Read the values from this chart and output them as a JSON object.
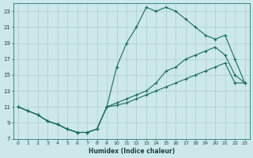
{
  "xlabel": "Humidex (Indice chaleur)",
  "ylabel": "",
  "bg_color": "#cce8ea",
  "grid_color": "#aacdd0",
  "line_color": "#1a6b60",
  "xlim": [
    -0.5,
    23.5
  ],
  "ylim": [
    7,
    24
  ],
  "xticks": [
    0,
    1,
    2,
    3,
    4,
    5,
    6,
    7,
    8,
    9,
    10,
    11,
    12,
    13,
    14,
    15,
    16,
    17,
    18,
    19,
    20,
    21,
    22,
    23
  ],
  "yticks": [
    7,
    9,
    11,
    13,
    15,
    17,
    19,
    21,
    23
  ],
  "line1_x": [
    0,
    1,
    2,
    3,
    4,
    5,
    6,
    7,
    8,
    9,
    10,
    11,
    12,
    13,
    14,
    15,
    16,
    17,
    18,
    19,
    20,
    21,
    22,
    23
  ],
  "line1_y": [
    11,
    10.5,
    10,
    9.2,
    8.8,
    8.2,
    7.8,
    7.8,
    8.2,
    11,
    16,
    19,
    21,
    23.5,
    23,
    23.5,
    23,
    22,
    21,
    20.0,
    19.5,
    20.0,
    17.0,
    14.0
  ],
  "line2_x": [
    0,
    1,
    2,
    3,
    4,
    5,
    6,
    7,
    8,
    9,
    10,
    11,
    12,
    13,
    14,
    15,
    16,
    17,
    18,
    19,
    20,
    21,
    22,
    23
  ],
  "line2_y": [
    11,
    10.5,
    10,
    9.2,
    8.8,
    8.2,
    7.8,
    7.8,
    8.2,
    11,
    11.5,
    12,
    12.5,
    13,
    14,
    15.5,
    16,
    17,
    17.5,
    18,
    18.5,
    17.5,
    15.0,
    14.0
  ],
  "line3_x": [
    0,
    1,
    2,
    3,
    4,
    5,
    6,
    7,
    8,
    9,
    10,
    11,
    12,
    13,
    14,
    15,
    16,
    17,
    18,
    19,
    20,
    21,
    22,
    23
  ],
  "line3_y": [
    11,
    10.5,
    10,
    9.2,
    8.8,
    8.2,
    7.8,
    7.8,
    8.2,
    11,
    11.2,
    11.5,
    12.0,
    12.5,
    13.0,
    13.5,
    14.0,
    14.5,
    15.0,
    15.5,
    16.0,
    16.5,
    14.0,
    14.0
  ]
}
